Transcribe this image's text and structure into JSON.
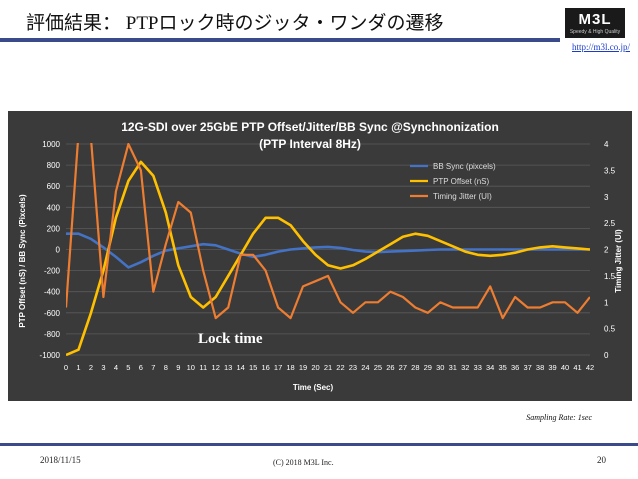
{
  "slide": {
    "title": "評価結果： PTPロック時のジッタ・ワンダの遷移",
    "logo_text": "M3L",
    "logo_tagline": "Speedy & High Quality",
    "url": "http://m3l.co.jp/",
    "sampling_note": "Sampling Rate: 1sec",
    "date": "2018/11/15",
    "copyright": "(C) 2018 M3L Inc.",
    "page_number": "20"
  },
  "chart_data": {
    "type": "line",
    "title": "12G-SDI over 25GbE PTP Offset/Jitter/BB Sync @Synchnonization",
    "subtitle": "(PTP Interval 8Hz)",
    "xlabel": "Time  (Sec)",
    "ylabel": "PTP Offset (nS) / BB Sync (Pixcels)",
    "y2label": "Timing Jitter (UI)",
    "annotation": "Lock time",
    "background": "#3a3a3a",
    "ylim": [
      -1000,
      1000
    ],
    "y2lim": [
      0,
      4
    ],
    "grid": true,
    "legend_position": "top-right",
    "yticks": [
      "1000",
      "800",
      "600",
      "400",
      "200",
      "0",
      "-200",
      "-400",
      "-600",
      "-800",
      "-1000"
    ],
    "y2ticks": [
      "4",
      "3.5",
      "3",
      "2.5",
      "2",
      "1.5",
      "1",
      "0.5",
      "0"
    ],
    "x": [
      0,
      1,
      2,
      3,
      4,
      5,
      6,
      7,
      8,
      9,
      10,
      11,
      12,
      13,
      14,
      15,
      16,
      17,
      18,
      19,
      20,
      21,
      22,
      23,
      24,
      25,
      26,
      27,
      28,
      29,
      30,
      31,
      32,
      33,
      34,
      35,
      36,
      37,
      38,
      39,
      40,
      41,
      42
    ],
    "series": [
      {
        "name": "BB Sync (pixcels)",
        "axis": "left",
        "color": "#4472c4",
        "values": [
          150,
          150,
          100,
          20,
          -70,
          -170,
          -120,
          -60,
          -10,
          10,
          30,
          50,
          40,
          0,
          -40,
          -70,
          -50,
          -20,
          0,
          10,
          20,
          25,
          15,
          -5,
          -20,
          -25,
          -20,
          -15,
          -10,
          -5,
          0,
          0,
          0,
          0,
          0,
          0,
          0,
          0,
          0,
          0,
          0,
          0,
          0
        ]
      },
      {
        "name": "PTP Offset (nS)",
        "axis": "left",
        "color": "#ffc000",
        "values": [
          -1000,
          -950,
          -600,
          -200,
          300,
          650,
          830,
          700,
          350,
          -150,
          -450,
          -550,
          -450,
          -250,
          -50,
          150,
          300,
          300,
          230,
          80,
          -50,
          -150,
          -180,
          -150,
          -90,
          -20,
          50,
          120,
          150,
          130,
          80,
          30,
          -20,
          -50,
          -60,
          -50,
          -30,
          0,
          20,
          30,
          20,
          10,
          0
        ]
      },
      {
        "name": "Timing Jitter (UI)",
        "axis": "right",
        "color": "#ed7d31",
        "values": [
          0.9,
          4.2,
          4.1,
          1.1,
          3.1,
          4.0,
          3.5,
          1.2,
          2.1,
          2.9,
          2.7,
          1.6,
          0.7,
          0.9,
          1.9,
          1.9,
          1.6,
          0.9,
          0.7,
          1.3,
          1.4,
          1.5,
          1.0,
          0.8,
          1.0,
          1.0,
          1.2,
          1.1,
          0.9,
          0.8,
          1.0,
          0.9,
          0.9,
          0.9,
          1.3,
          0.7,
          1.1,
          0.9,
          0.9,
          1.0,
          1.0,
          0.8,
          1.1
        ]
      }
    ]
  }
}
